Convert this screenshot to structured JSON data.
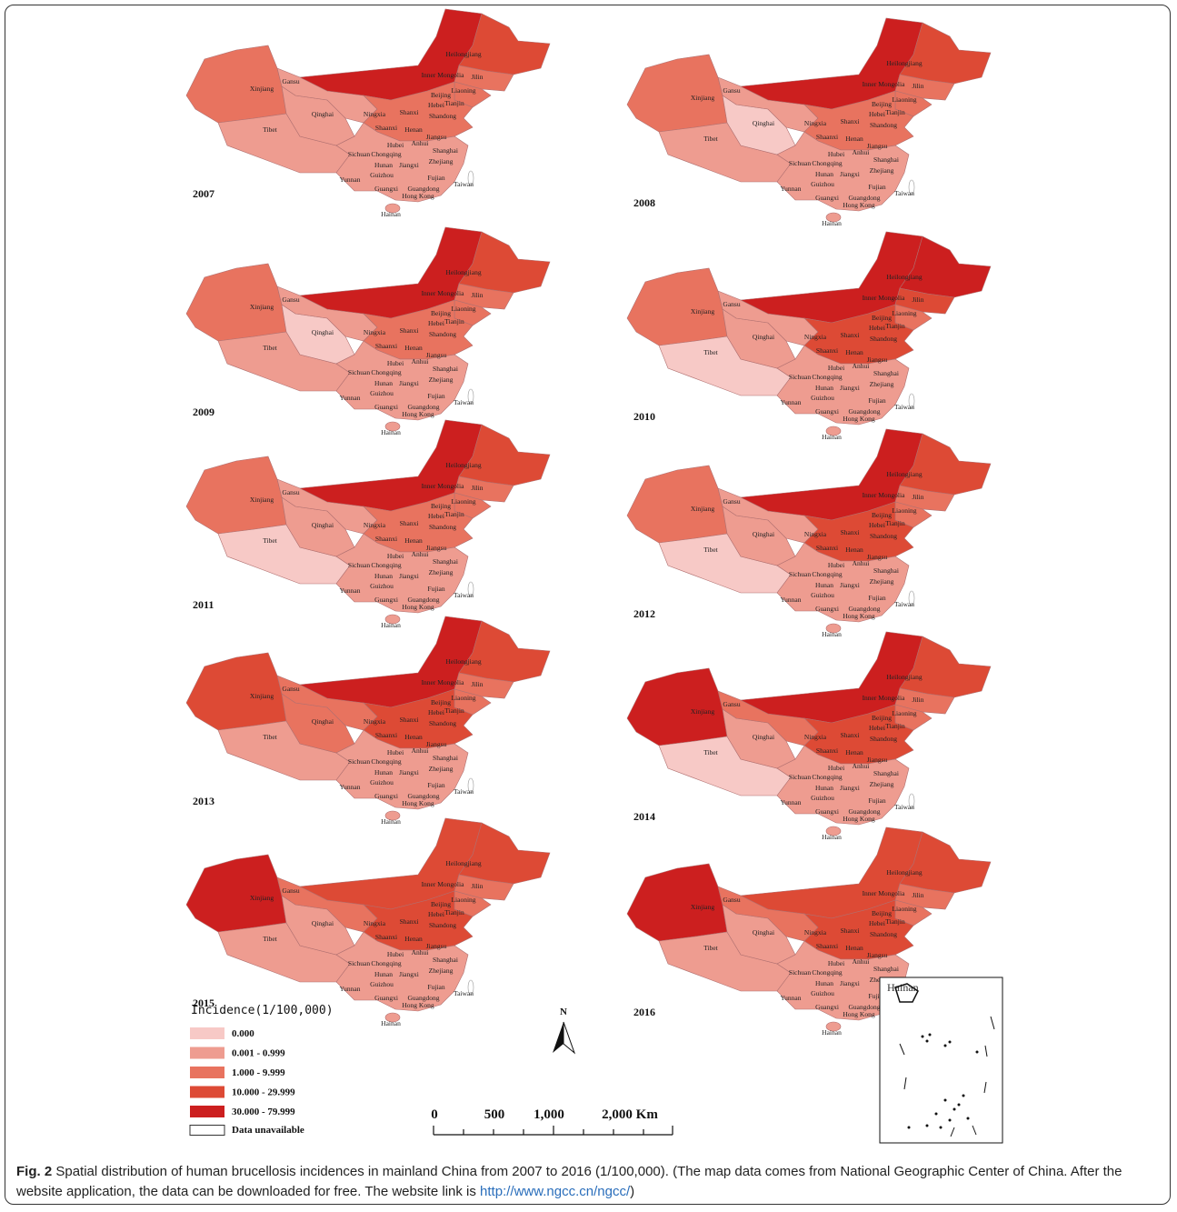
{
  "legend": {
    "title": "Incidence(1/100,000)",
    "classes": [
      {
        "label": "0.000",
        "color": "#f7c9c6"
      },
      {
        "label": "0.001 - 0.999",
        "color": "#ee9c90"
      },
      {
        "label": "1.000 - 9.999",
        "color": "#e8735f"
      },
      {
        "label": "10.000 - 29.999",
        "color": "#dd4a35"
      },
      {
        "label": "30.000 - 79.999",
        "color": "#cc1f1f"
      }
    ],
    "unavailable": "Data unavailable"
  },
  "provinces": [
    "Xinjiang",
    "Gansu",
    "Qinghai",
    "Tibet",
    "Inner Mongolia",
    "Heilongjiang",
    "Jilin",
    "Liaoning",
    "Beijing",
    "Hebei",
    "Tianjin",
    "Ningxia",
    "Shanxi",
    "Shandong",
    "Shaanxi",
    "Henan",
    "Jiangsu",
    "Anhui",
    "Shanghai",
    "Hubei",
    "Sichuan",
    "Chongqing",
    "Zhejiang",
    "Hunan",
    "Jiangxi",
    "Guizhou",
    "Fujian",
    "Yunnan",
    "Guangxi",
    "Guangdong",
    "Hong Kong",
    "Taiwan",
    "Hainan"
  ],
  "maps": [
    {
      "year": "2007",
      "classes": [
        2,
        1,
        1,
        1,
        4,
        3,
        2,
        2,
        2,
        1
      ]
    },
    {
      "year": "2008",
      "classes": [
        2,
        1,
        0,
        1,
        4,
        3,
        2,
        2,
        2,
        1
      ]
    },
    {
      "year": "2009",
      "classes": [
        2,
        1,
        0,
        1,
        4,
        3,
        2,
        2,
        2,
        1
      ]
    },
    {
      "year": "2010",
      "classes": [
        2,
        0,
        1,
        1,
        4,
        4,
        3,
        2,
        3,
        1
      ]
    },
    {
      "year": "2011",
      "classes": [
        2,
        0,
        1,
        1,
        4,
        3,
        2,
        2,
        2,
        1
      ]
    },
    {
      "year": "2012",
      "classes": [
        2,
        0,
        1,
        1,
        4,
        3,
        2,
        2,
        3,
        1
      ]
    },
    {
      "year": "2013",
      "classes": [
        3,
        1,
        2,
        2,
        4,
        3,
        2,
        2,
        3,
        1
      ]
    },
    {
      "year": "2014",
      "classes": [
        4,
        0,
        1,
        2,
        4,
        3,
        2,
        2,
        3,
        1
      ]
    },
    {
      "year": "2015",
      "classes": [
        4,
        1,
        1,
        2,
        3,
        3,
        2,
        2,
        3,
        1
      ]
    },
    {
      "year": "2016",
      "classes": [
        4,
        1,
        1,
        2,
        3,
        3,
        2,
        2,
        3,
        1
      ]
    }
  ],
  "north": "N",
  "scale_labels": [
    "0",
    "500",
    "1,000",
    "2,000 Km"
  ],
  "inset_label": "Hainan",
  "caption": {
    "label": "Fig. 2",
    "text": "Spatial distribution of human brucellosis incidences in mainland China from 2007 to 2016 (1/100,000). (The map data comes from National Geographic Center of China. After the website application, the data can be downloaded for free. The website link is ",
    "link": "http://www.ngcc.cn/ngcc/",
    "end": ")"
  }
}
